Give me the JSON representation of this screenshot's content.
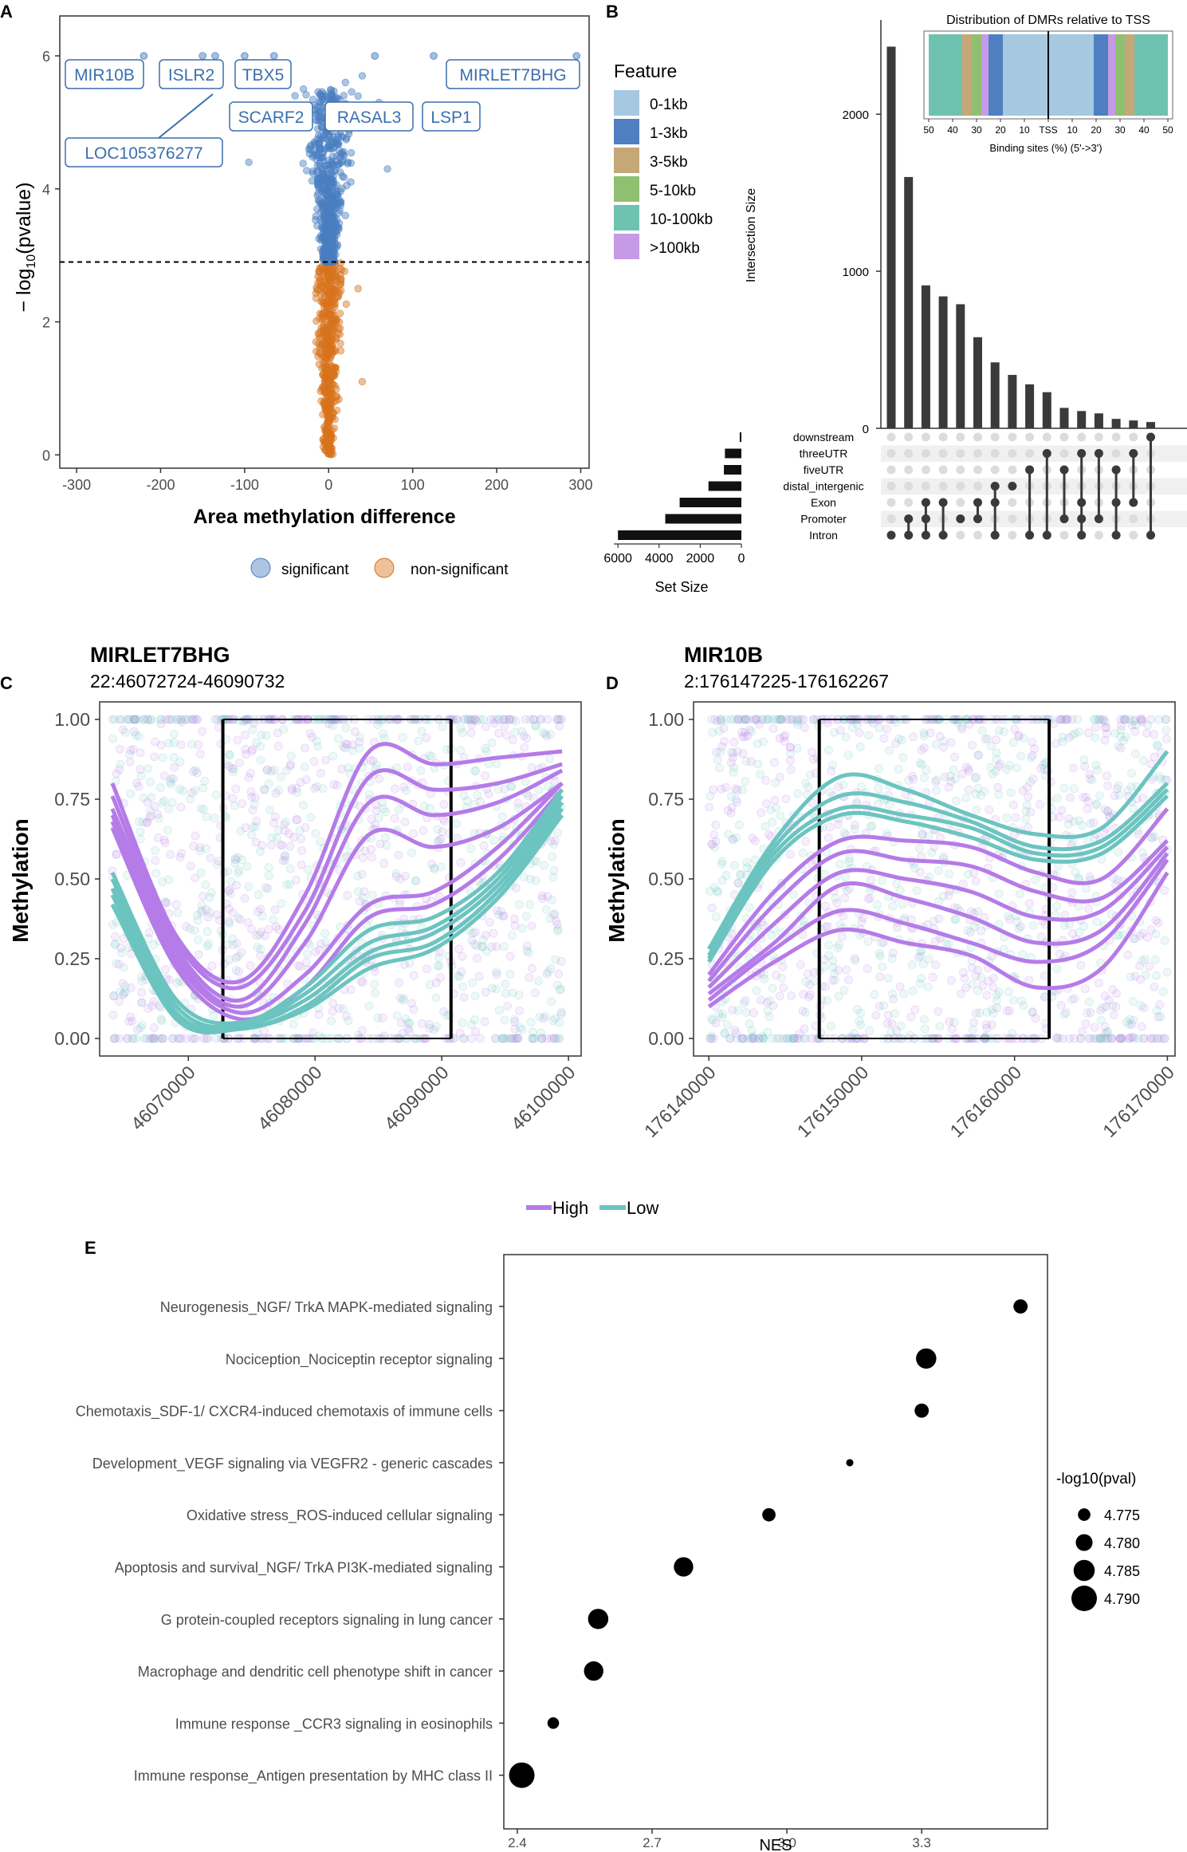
{
  "colors": {
    "significant": "#4a7fc1",
    "nonsig": "#d8731c",
    "high": "#b57be8",
    "low": "#6cc4c0",
    "dark": "#333333"
  },
  "chart_data": [
    {
      "panel": "A",
      "type": "scatter",
      "title": "",
      "xlabel": "Area methylation difference",
      "ylabel": "− log10(pvalue)",
      "ylabel_main": "− log",
      "ylabel_sub": "10",
      "ylabel_tail": "(pvalue)",
      "xlim": [
        -320,
        310
      ],
      "ylim": [
        -0.2,
        6.6
      ],
      "xticks": [
        -300,
        -200,
        -100,
        0,
        100,
        200,
        300
      ],
      "yticks": [
        0,
        2,
        4,
        6
      ],
      "threshold": 2.9,
      "legend": {
        "significant": "significant",
        "nonsig": "non-significant"
      },
      "labeled_points": [
        {
          "label": "MIR10B",
          "x": -220,
          "y": 6.0
        },
        {
          "label": "ISLR2",
          "x": -150,
          "y": 6.0
        },
        {
          "label": "TBX5",
          "x": -100,
          "y": 6.0
        },
        {
          "label": "LOC105376277",
          "x": -135,
          "y": 6.0
        },
        {
          "label": "SCARF2",
          "x": -65,
          "y": 6.0
        },
        {
          "label": "RASAL3",
          "x": 55,
          "y": 6.0
        },
        {
          "label": "LSP1",
          "x": 125,
          "y": 6.0
        },
        {
          "label": "MIRLET7BHG",
          "x": 295,
          "y": 6.0
        }
      ]
    },
    {
      "panel": "B",
      "type": "bar",
      "subtype": "upset",
      "ylabel": "Intersection Size",
      "yticks": [
        0,
        1000,
        2000
      ],
      "ylim": [
        0,
        2600
      ],
      "intersections": [
        2430,
        1600,
        910,
        840,
        790,
        580,
        420,
        340,
        280,
        230,
        130,
        110,
        95,
        60,
        50,
        40
      ],
      "sets": [
        "downstream",
        "threeUTR",
        "fiveUTR",
        "distal_intergenic",
        "Exon",
        "Promoter",
        "Intron"
      ],
      "set_sizes": [
        80,
        800,
        850,
        1600,
        3000,
        3700,
        6000
      ],
      "set_size_label": "Set Size",
      "set_size_ticks": [
        6000,
        4000,
        2000,
        0
      ],
      "legend_title": "Feature",
      "legend_items": [
        {
          "label": "0-1kb",
          "color": "#a6c8e0"
        },
        {
          "label": "1-3kb",
          "color": "#4f7fc1"
        },
        {
          "label": "3-5kb",
          "color": "#c6a878"
        },
        {
          "label": "5-10kb",
          "color": "#8fbf70"
        },
        {
          "label": "10-100kb",
          "color": "#70c2b0"
        },
        {
          "label": ">100kb",
          "color": "#c59ae6"
        }
      ],
      "inset_title": "Distribution of DMRs relative to TSS",
      "inset_xlabel": "Binding sites (%) (5'->3')",
      "inset_ticks": [
        "50",
        "40",
        "30",
        "20",
        "10",
        "TSS",
        "10",
        "20",
        "30",
        "40",
        "50"
      ]
    },
    {
      "panel": "C",
      "type": "line",
      "title": "MIRLET7BHG",
      "subtitle": "22:46072724-46090732",
      "ylabel": "Methylation",
      "ylim": [
        0,
        1
      ],
      "yticks": [
        "0.00",
        "0.25",
        "0.50",
        "0.75",
        "1.00"
      ],
      "xlim": [
        46063000,
        46101000
      ],
      "xticks": [
        "46070000",
        "46080000",
        "46090000",
        "46100000"
      ],
      "xtick_values": [
        46070000,
        46080000,
        46090000,
        46100000
      ],
      "region": [
        46072724,
        46090732
      ],
      "x_start": 46064000,
      "x_end": 46099500,
      "series": [
        {
          "name": "High",
          "values": [
            0.8,
            0.32,
            0.18,
            0.45,
            0.9,
            0.86,
            0.88,
            0.9
          ]
        },
        {
          "name": "High",
          "values": [
            0.76,
            0.3,
            0.16,
            0.4,
            0.82,
            0.78,
            0.8,
            0.86
          ]
        },
        {
          "name": "High",
          "values": [
            0.72,
            0.28,
            0.12,
            0.36,
            0.74,
            0.7,
            0.74,
            0.84
          ]
        },
        {
          "name": "High",
          "values": [
            0.7,
            0.26,
            0.1,
            0.3,
            0.64,
            0.6,
            0.66,
            0.8
          ]
        },
        {
          "name": "High",
          "values": [
            0.68,
            0.24,
            0.08,
            0.2,
            0.42,
            0.46,
            0.6,
            0.8
          ]
        },
        {
          "name": "High",
          "values": [
            0.66,
            0.22,
            0.06,
            0.16,
            0.38,
            0.42,
            0.56,
            0.78
          ]
        },
        {
          "name": "Low",
          "values": [
            0.52,
            0.12,
            0.05,
            0.16,
            0.34,
            0.38,
            0.52,
            0.78
          ]
        },
        {
          "name": "Low",
          "values": [
            0.5,
            0.1,
            0.04,
            0.14,
            0.3,
            0.35,
            0.5,
            0.76
          ]
        },
        {
          "name": "Low",
          "values": [
            0.47,
            0.08,
            0.04,
            0.12,
            0.27,
            0.33,
            0.48,
            0.74
          ]
        },
        {
          "name": "Low",
          "values": [
            0.45,
            0.07,
            0.03,
            0.1,
            0.25,
            0.3,
            0.46,
            0.72
          ]
        },
        {
          "name": "Low",
          "values": [
            0.42,
            0.06,
            0.03,
            0.09,
            0.22,
            0.28,
            0.44,
            0.7
          ]
        }
      ]
    },
    {
      "panel": "D",
      "type": "line",
      "title": "MIR10B",
      "subtitle": "2:176147225-176162267",
      "ylabel": "Methylation",
      "ylim": [
        0,
        1
      ],
      "yticks": [
        "0.00",
        "0.25",
        "0.50",
        "0.75",
        "1.00"
      ],
      "xlim": [
        176139000,
        176170500
      ],
      "xticks": [
        "176140000",
        "176150000",
        "176160000",
        "176170000"
      ],
      "xtick_values": [
        176140000,
        176150000,
        176160000,
        176170000
      ],
      "region": [
        176147225,
        176162267
      ],
      "x_start": 176140000,
      "x_end": 176170000,
      "series": [
        {
          "name": "Low",
          "values": [
            0.28,
            0.62,
            0.82,
            0.78,
            0.7,
            0.64,
            0.66,
            0.9
          ]
        },
        {
          "name": "Low",
          "values": [
            0.26,
            0.6,
            0.76,
            0.74,
            0.68,
            0.6,
            0.62,
            0.8
          ]
        },
        {
          "name": "Low",
          "values": [
            0.25,
            0.58,
            0.72,
            0.7,
            0.66,
            0.58,
            0.6,
            0.78
          ]
        },
        {
          "name": "Low",
          "values": [
            0.24,
            0.56,
            0.7,
            0.68,
            0.63,
            0.56,
            0.58,
            0.76
          ]
        },
        {
          "name": "High",
          "values": [
            0.2,
            0.46,
            0.62,
            0.62,
            0.6,
            0.52,
            0.5,
            0.72
          ]
        },
        {
          "name": "High",
          "values": [
            0.18,
            0.42,
            0.58,
            0.56,
            0.54,
            0.46,
            0.44,
            0.62
          ]
        },
        {
          "name": "High",
          "values": [
            0.16,
            0.36,
            0.52,
            0.5,
            0.46,
            0.38,
            0.4,
            0.6
          ]
        },
        {
          "name": "High",
          "values": [
            0.14,
            0.3,
            0.48,
            0.44,
            0.38,
            0.3,
            0.34,
            0.58
          ]
        },
        {
          "name": "High",
          "values": [
            0.12,
            0.28,
            0.4,
            0.36,
            0.3,
            0.24,
            0.3,
            0.56
          ]
        },
        {
          "name": "High",
          "values": [
            0.1,
            0.24,
            0.34,
            0.3,
            0.26,
            0.16,
            0.22,
            0.52
          ]
        }
      ]
    },
    {
      "panel": "E",
      "type": "scatter",
      "subtype": "dotplot",
      "xlabel": "NES",
      "xlim": [
        2.37,
        3.58
      ],
      "xticks": [
        "2.4",
        "2.7",
        "3.0",
        "3.3"
      ],
      "xtick_values": [
        2.4,
        2.7,
        3.0,
        3.3
      ],
      "size_legend_title": "-log10(pval)",
      "size_legend": [
        "4.775",
        "4.780",
        "4.785",
        "4.790"
      ],
      "size_legend_values": [
        4.775,
        4.78,
        4.785,
        4.79
      ],
      "pathways": [
        {
          "label": "Neurogenesis_NGF/ TrkA MAPK-mediated signaling",
          "nes": 3.52,
          "size": 4.777
        },
        {
          "label": "Nociception_Nociceptin receptor signaling",
          "nes": 3.31,
          "size": 4.784
        },
        {
          "label": "Chemotaxis_SDF-1/ CXCR4-induced chemotaxis of immune cells",
          "nes": 3.3,
          "size": 4.777
        },
        {
          "label": "Development_VEGF signaling via VEGFR2 - generic cascades",
          "nes": 3.14,
          "size": 4.769
        },
        {
          "label": "Oxidative stress_ROS-induced cellular signaling",
          "nes": 2.96,
          "size": 4.776
        },
        {
          "label": "Apoptosis and survival_NGF/ TrkA PI3K-mediated signaling",
          "nes": 2.77,
          "size": 4.783
        },
        {
          "label": "G protein-coupled receptors signaling in lung cancer",
          "nes": 2.58,
          "size": 4.784
        },
        {
          "label": "Macrophage and dendritic cell phenotype shift in cancer",
          "nes": 2.57,
          "size": 4.783
        },
        {
          "label": "Immune response _CCR3 signaling in eosinophils",
          "nes": 2.48,
          "size": 4.774
        },
        {
          "label": "Immune response_Antigen presentation by MHC class II",
          "nes": 2.41,
          "size": 4.79
        }
      ]
    }
  ],
  "panel_c_d_legend": {
    "high": "High",
    "low": "Low"
  }
}
